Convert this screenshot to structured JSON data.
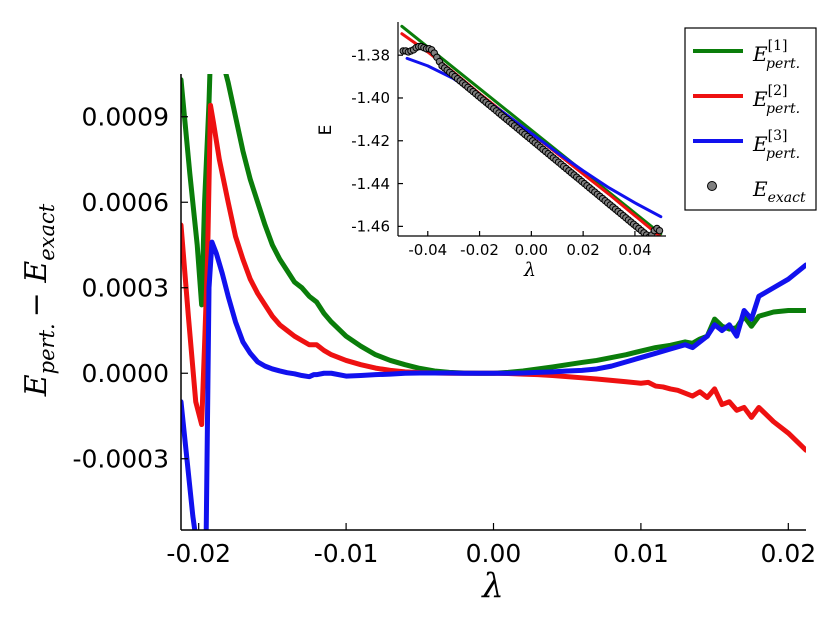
{
  "chart_data": [
    {
      "type": "line",
      "xlabel": "λ",
      "ylabel_main": "E",
      "ylabel_main_sub": "pert.",
      "ylabel_minus": "− E",
      "ylabel_minus_sub": "exact",
      "xlim": [
        -0.0212,
        0.0212
      ],
      "ylim": [
        -0.00055,
        0.00105
      ],
      "xticks": [
        -0.02,
        -0.01,
        0.0,
        0.01,
        0.02
      ],
      "xtick_labels": [
        "-0.02",
        "-0.01",
        "0.00",
        "0.01",
        "0.02"
      ],
      "yticks": [
        -0.0003,
        0.0,
        0.0003,
        0.0006,
        0.0009
      ],
      "ytick_labels": [
        "-0.0003",
        "0.0000",
        "0.0003",
        "0.0006",
        "0.0009"
      ],
      "series": [
        {
          "name": "E[1] pert.",
          "color": "#0a7d0a",
          "x": [
            -0.0212,
            -0.0206,
            -0.0201,
            -0.0198,
            -0.0196,
            -0.0193,
            -0.0192,
            -0.0188,
            -0.0185,
            -0.018,
            -0.0175,
            -0.017,
            -0.0165,
            -0.016,
            -0.0155,
            -0.015,
            -0.0145,
            -0.014,
            -0.0135,
            -0.013,
            -0.0125,
            -0.012,
            -0.0115,
            -0.011,
            -0.01,
            -0.009,
            -0.008,
            -0.007,
            -0.006,
            -0.005,
            -0.004,
            -0.003,
            -0.002,
            -0.001,
            0.0,
            0.001,
            0.002,
            0.003,
            0.004,
            0.005,
            0.006,
            0.007,
            0.008,
            0.009,
            0.01,
            0.011,
            0.012,
            0.013,
            0.0135,
            0.014,
            0.0145,
            0.015,
            0.0155,
            0.016,
            0.0165,
            0.017,
            0.0175,
            0.018,
            0.019,
            0.02,
            0.0212
          ],
          "y": [
            0.00103,
            0.0007,
            0.00045,
            0.00024,
            0.0006,
            0.00095,
            0.00112,
            0.00112,
            0.00112,
            0.00102,
            0.0009,
            0.00078,
            0.00068,
            0.0006,
            0.00052,
            0.00045,
            0.0004,
            0.00036,
            0.00032,
            0.0003,
            0.00027,
            0.00025,
            0.00021,
            0.00018,
            0.00013,
            9.5e-05,
            6.5e-05,
            4.5e-05,
            3e-05,
            1.7e-05,
            8e-06,
            3e-06,
            1e-06,
            0.0,
            0.0,
            3e-06,
            8e-06,
            1.5e-05,
            2.2e-05,
            3e-05,
            3.8e-05,
            4.5e-05,
            5.5e-05,
            6.5e-05,
            7.8e-05,
            9e-05,
            9.8e-05,
            0.00011,
            0.000105,
            0.00012,
            0.00013,
            0.00019,
            0.000165,
            0.000155,
            0.00016,
            0.0002,
            0.000165,
            0.0002,
            0.000215,
            0.00022,
            0.00022
          ]
        },
        {
          "name": "E[2] pert.",
          "color": "#ee1111",
          "x": [
            -0.0212,
            -0.0207,
            -0.0202,
            -0.0198,
            -0.0196,
            -0.0194,
            -0.0192,
            -0.019,
            -0.0186,
            -0.018,
            -0.0175,
            -0.017,
            -0.0165,
            -0.016,
            -0.0155,
            -0.015,
            -0.0145,
            -0.014,
            -0.0135,
            -0.013,
            -0.0125,
            -0.012,
            -0.0115,
            -0.011,
            -0.01,
            -0.009,
            -0.008,
            -0.007,
            -0.006,
            -0.005,
            -0.004,
            -0.003,
            -0.002,
            -0.001,
            0.0,
            0.001,
            0.002,
            0.003,
            0.004,
            0.005,
            0.006,
            0.007,
            0.008,
            0.009,
            0.01,
            0.0105,
            0.011,
            0.0115,
            0.012,
            0.0125,
            0.013,
            0.0135,
            0.014,
            0.0145,
            0.015,
            0.0155,
            0.016,
            0.0165,
            0.017,
            0.0175,
            0.018,
            0.019,
            0.02,
            0.0212
          ],
          "y": [
            0.00052,
            0.0002,
            -0.0001,
            -0.00018,
            0.0001,
            0.0004,
            0.00094,
            0.00088,
            0.00075,
            0.0006,
            0.00048,
            0.0004,
            0.00033,
            0.00028,
            0.00024,
            0.0002,
            0.00017,
            0.00015,
            0.00013,
            0.000115,
            0.0001,
            0.0001,
            8e-05,
            6.5e-05,
            4.5e-05,
            3e-05,
            1.8e-05,
            1e-05,
            5e-06,
            2e-06,
            1e-06,
            0.0,
            0.0,
            0.0,
            0.0,
            -1e-06,
            -3e-06,
            -5e-06,
            -8e-06,
            -1.2e-05,
            -1.6e-05,
            -2e-05,
            -2.5e-05,
            -3e-05,
            -3.5e-05,
            -3.2e-05,
            -4.5e-05,
            -4.8e-05,
            -5.5e-05,
            -6e-05,
            -7e-05,
            -8e-05,
            -6.5e-05,
            -8.5e-05,
            -5.5e-05,
            -0.00011,
            -0.0001,
            -0.00013,
            -0.00012,
            -0.000155,
            -0.00012,
            -0.00017,
            -0.00021,
            -0.00027
          ]
        },
        {
          "name": "E[3] pert.",
          "color": "#1111ee",
          "x": [
            -0.0212,
            -0.0208,
            -0.0204,
            -0.02,
            -0.0197,
            -0.0195,
            -0.0193,
            -0.0191,
            -0.0188,
            -0.0184,
            -0.018,
            -0.0175,
            -0.017,
            -0.0165,
            -0.016,
            -0.0155,
            -0.015,
            -0.0145,
            -0.014,
            -0.0135,
            -0.013,
            -0.0125,
            -0.0122,
            -0.012,
            -0.0115,
            -0.011,
            -0.01,
            -0.009,
            -0.008,
            -0.007,
            -0.006,
            -0.005,
            -0.004,
            -0.003,
            -0.002,
            -0.001,
            0.0,
            0.001,
            0.002,
            0.003,
            0.004,
            0.005,
            0.006,
            0.007,
            0.008,
            0.009,
            0.01,
            0.011,
            0.012,
            0.013,
            0.0135,
            0.014,
            0.0145,
            0.015,
            0.0155,
            0.016,
            0.0165,
            0.017,
            0.0175,
            0.018,
            0.019,
            0.02,
            0.0212
          ],
          "y": [
            -0.0001,
            -0.0003,
            -0.0005,
            -0.00065,
            -0.0007,
            -0.0006,
            0.0003,
            0.00046,
            0.00042,
            0.00035,
            0.00027,
            0.00018,
            0.00011,
            7e-05,
            4e-05,
            2.5e-05,
            1.5e-05,
            8e-06,
            2e-06,
            -2e-06,
            -8e-06,
            -1.2e-05,
            -5e-06,
            -5e-06,
            0.0,
            0.0,
            -1e-05,
            -8e-06,
            -5e-06,
            -3e-06,
            0.0,
            1e-06,
            1e-06,
            1e-06,
            0.0,
            0.0,
            0.0,
            0.0,
            1e-06,
            3e-06,
            5e-06,
            8e-06,
            1e-05,
            1.5e-05,
            2.5e-05,
            4e-05,
            5.5e-05,
            7e-05,
            8.5e-05,
            0.0001,
            9e-05,
            0.00011,
            0.00013,
            0.00017,
            0.00015,
            0.00017,
            0.00013,
            0.00022,
            0.00019,
            0.00027,
            0.0003,
            0.00033,
            0.00038
          ]
        }
      ],
      "legend": {
        "placement": "top-right",
        "entries": [
          {
            "kind": "line",
            "color": "#0a7d0a",
            "main": "E",
            "sup": "[1]",
            "sub": "pert."
          },
          {
            "kind": "line",
            "color": "#ee1111",
            "main": "E",
            "sup": "[2]",
            "sub": "pert."
          },
          {
            "kind": "line",
            "color": "#1111ee",
            "main": "E",
            "sup": "[3]",
            "sub": "pert."
          },
          {
            "kind": "marker",
            "color": "#808080",
            "main": "E",
            "sup": "",
            "sub": "exact"
          }
        ]
      }
    },
    {
      "type": "line",
      "placement": "inset",
      "xlabel": "λ",
      "ylabel": "E",
      "xlim": [
        -0.0515,
        0.052
      ],
      "ylim": [
        -1.4645,
        -1.3645
      ],
      "xticks": [
        -0.04,
        -0.02,
        0.0,
        0.02,
        0.04
      ],
      "xtick_labels": [
        "-0.04",
        "-0.02",
        "0.00",
        "0.02",
        "0.04"
      ],
      "yticks": [
        -1.46,
        -1.44,
        -1.42,
        -1.4,
        -1.38
      ],
      "ytick_labels": [
        "-1.46",
        "-1.44",
        "-1.42",
        "-1.40",
        "-1.38"
      ],
      "series": [
        {
          "name": "E[1] pert.",
          "color": "#0a7d0a",
          "x": [
            -0.05,
            0.05
          ],
          "y": [
            -1.3665,
            -1.4635
          ]
        },
        {
          "name": "E[2] pert.",
          "color": "#ee1111",
          "x": [
            -0.05,
            -0.04,
            -0.03,
            -0.02,
            -0.01,
            0.0,
            0.01,
            0.02,
            0.03,
            0.04,
            0.05
          ],
          "y": [
            -1.37,
            -1.3785,
            -1.388,
            -1.398,
            -1.4075,
            -1.4165,
            -1.426,
            -1.4355,
            -1.445,
            -1.455,
            -1.465
          ]
        },
        {
          "name": "E[3] pert.",
          "color": "#1111ee",
          "x": [
            -0.048,
            -0.04,
            -0.03,
            -0.02,
            -0.01,
            0.0,
            0.01,
            0.02,
            0.03,
            0.04,
            0.05
          ],
          "y": [
            -1.3815,
            -1.385,
            -1.391,
            -1.399,
            -1.4075,
            -1.4165,
            -1.4255,
            -1.434,
            -1.442,
            -1.449,
            -1.4555
          ]
        },
        {
          "name": "E exact",
          "color": "#808080",
          "kind": "scatter",
          "x": [
            -0.0495,
            -0.0485,
            -0.0475,
            -0.0465,
            -0.0455,
            -0.0445,
            -0.0435,
            -0.0425,
            -0.0415,
            -0.0405,
            -0.0395,
            -0.0385,
            -0.0375,
            -0.0365,
            -0.0355,
            -0.0345,
            -0.0335,
            -0.0325,
            -0.0315,
            -0.0305,
            -0.0295,
            -0.0285,
            -0.0275,
            -0.0265,
            -0.0255,
            -0.0245,
            -0.0235,
            -0.0225,
            -0.0215,
            -0.0205,
            -0.0195,
            -0.0185,
            -0.0175,
            -0.0165,
            -0.0155,
            -0.0145,
            -0.0135,
            -0.0125,
            -0.0115,
            -0.0105,
            -0.0095,
            -0.0085,
            -0.0075,
            -0.0065,
            -0.0055,
            -0.0045,
            -0.0035,
            -0.0025,
            -0.0015,
            -0.0005,
            0.0005,
            0.0015,
            0.0025,
            0.0035,
            0.0045,
            0.0055,
            0.0065,
            0.0075,
            0.0085,
            0.0095,
            0.0105,
            0.0115,
            0.0125,
            0.0135,
            0.0145,
            0.0155,
            0.0165,
            0.0175,
            0.0185,
            0.0195,
            0.0205,
            0.0215,
            0.0225,
            0.0235,
            0.0245,
            0.0255,
            0.0265,
            0.0275,
            0.0285,
            0.0295,
            0.0305,
            0.0315,
            0.0325,
            0.0335,
            0.0345,
            0.0355,
            0.0365,
            0.0375,
            0.0385,
            0.0395,
            0.0405,
            0.0415,
            0.0425,
            0.0435,
            0.0445,
            0.0455,
            0.0465,
            0.0475,
            0.0485,
            0.0495
          ],
          "y": [
            -1.378,
            -1.378,
            -1.3785,
            -1.378,
            -1.3775,
            -1.3765,
            -1.376,
            -1.376,
            -1.3765,
            -1.377,
            -1.377,
            -1.3775,
            -1.379,
            -1.381,
            -1.383,
            -1.385,
            -1.386,
            -1.387,
            -1.388,
            -1.389,
            -1.39,
            -1.391,
            -1.392,
            -1.393,
            -1.394,
            -1.395,
            -1.396,
            -1.397,
            -1.398,
            -1.399,
            -1.4,
            -1.401,
            -1.402,
            -1.403,
            -1.404,
            -1.405,
            -1.406,
            -1.407,
            -1.408,
            -1.409,
            -1.41,
            -1.411,
            -1.412,
            -1.413,
            -1.414,
            -1.415,
            -1.416,
            -1.417,
            -1.418,
            -1.419,
            -1.42,
            -1.421,
            -1.422,
            -1.423,
            -1.424,
            -1.425,
            -1.426,
            -1.427,
            -1.428,
            -1.429,
            -1.43,
            -1.431,
            -1.432,
            -1.433,
            -1.434,
            -1.435,
            -1.436,
            -1.437,
            -1.438,
            -1.439,
            -1.44,
            -1.441,
            -1.442,
            -1.443,
            -1.444,
            -1.445,
            -1.446,
            -1.447,
            -1.448,
            -1.449,
            -1.45,
            -1.451,
            -1.452,
            -1.453,
            -1.454,
            -1.455,
            -1.456,
            -1.457,
            -1.458,
            -1.459,
            -1.46,
            -1.461,
            -1.462,
            -1.463,
            -1.464,
            -1.465,
            -1.464,
            -1.462,
            -1.461,
            -1.462
          ]
        }
      ]
    }
  ]
}
